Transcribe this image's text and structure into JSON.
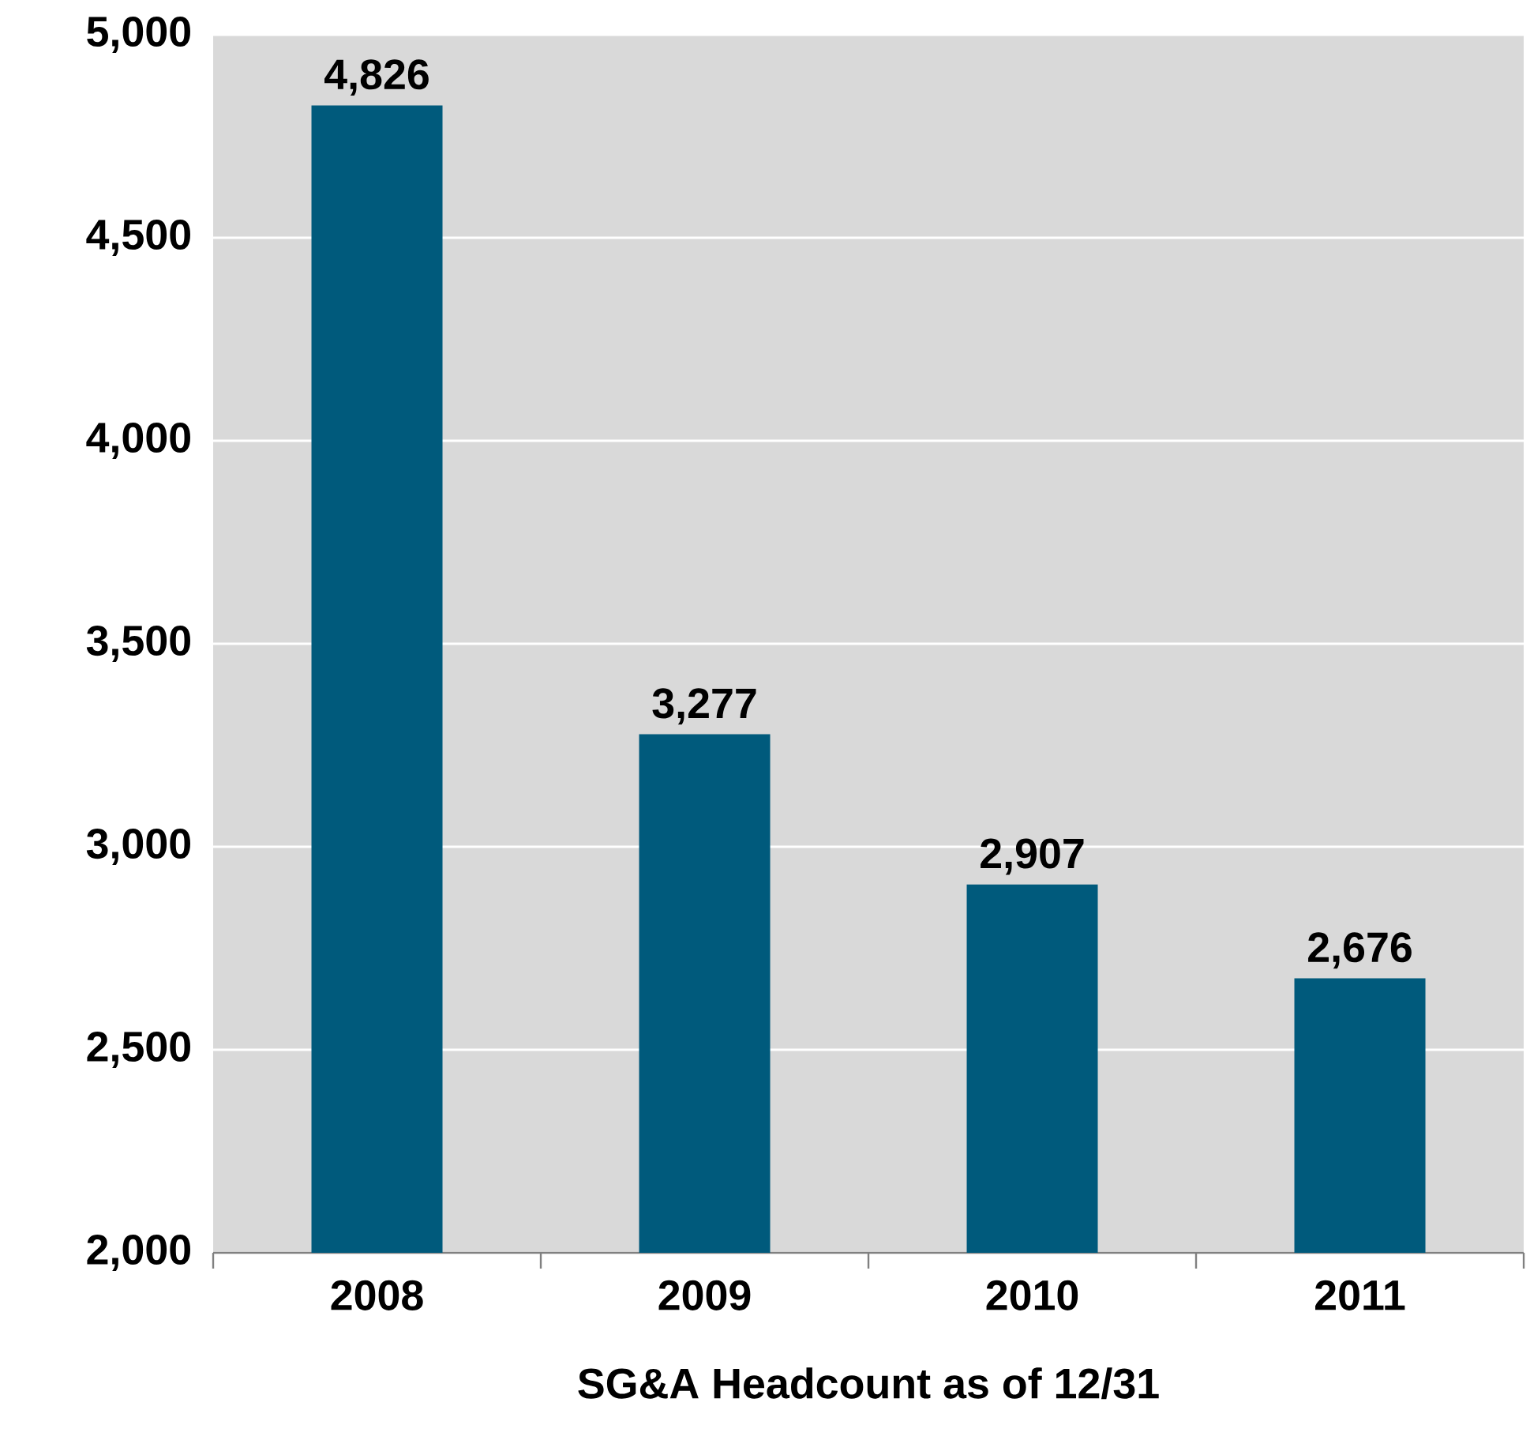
{
  "chart_data": {
    "type": "bar",
    "xlabel": "SG&A Headcount as of 12/31",
    "categories": [
      "2008",
      "2009",
      "2010",
      "2011"
    ],
    "values": [
      4826,
      3277,
      2907,
      2676
    ],
    "value_labels": [
      "4,826",
      "3,277",
      "2,907",
      "2,676"
    ],
    "color": "#005a7c",
    "ylim": [
      2000,
      5000
    ],
    "yticks": [
      {
        "value": 2000,
        "label": "2,000"
      },
      {
        "value": 2500,
        "label": "2,500"
      },
      {
        "value": 3000,
        "label": "3,000"
      },
      {
        "value": 3500,
        "label": "3,500"
      },
      {
        "value": 4000,
        "label": "4,000"
      },
      {
        "value": 4500,
        "label": "4,500"
      },
      {
        "value": 5000,
        "label": "5,000"
      }
    ],
    "grid": "y"
  }
}
